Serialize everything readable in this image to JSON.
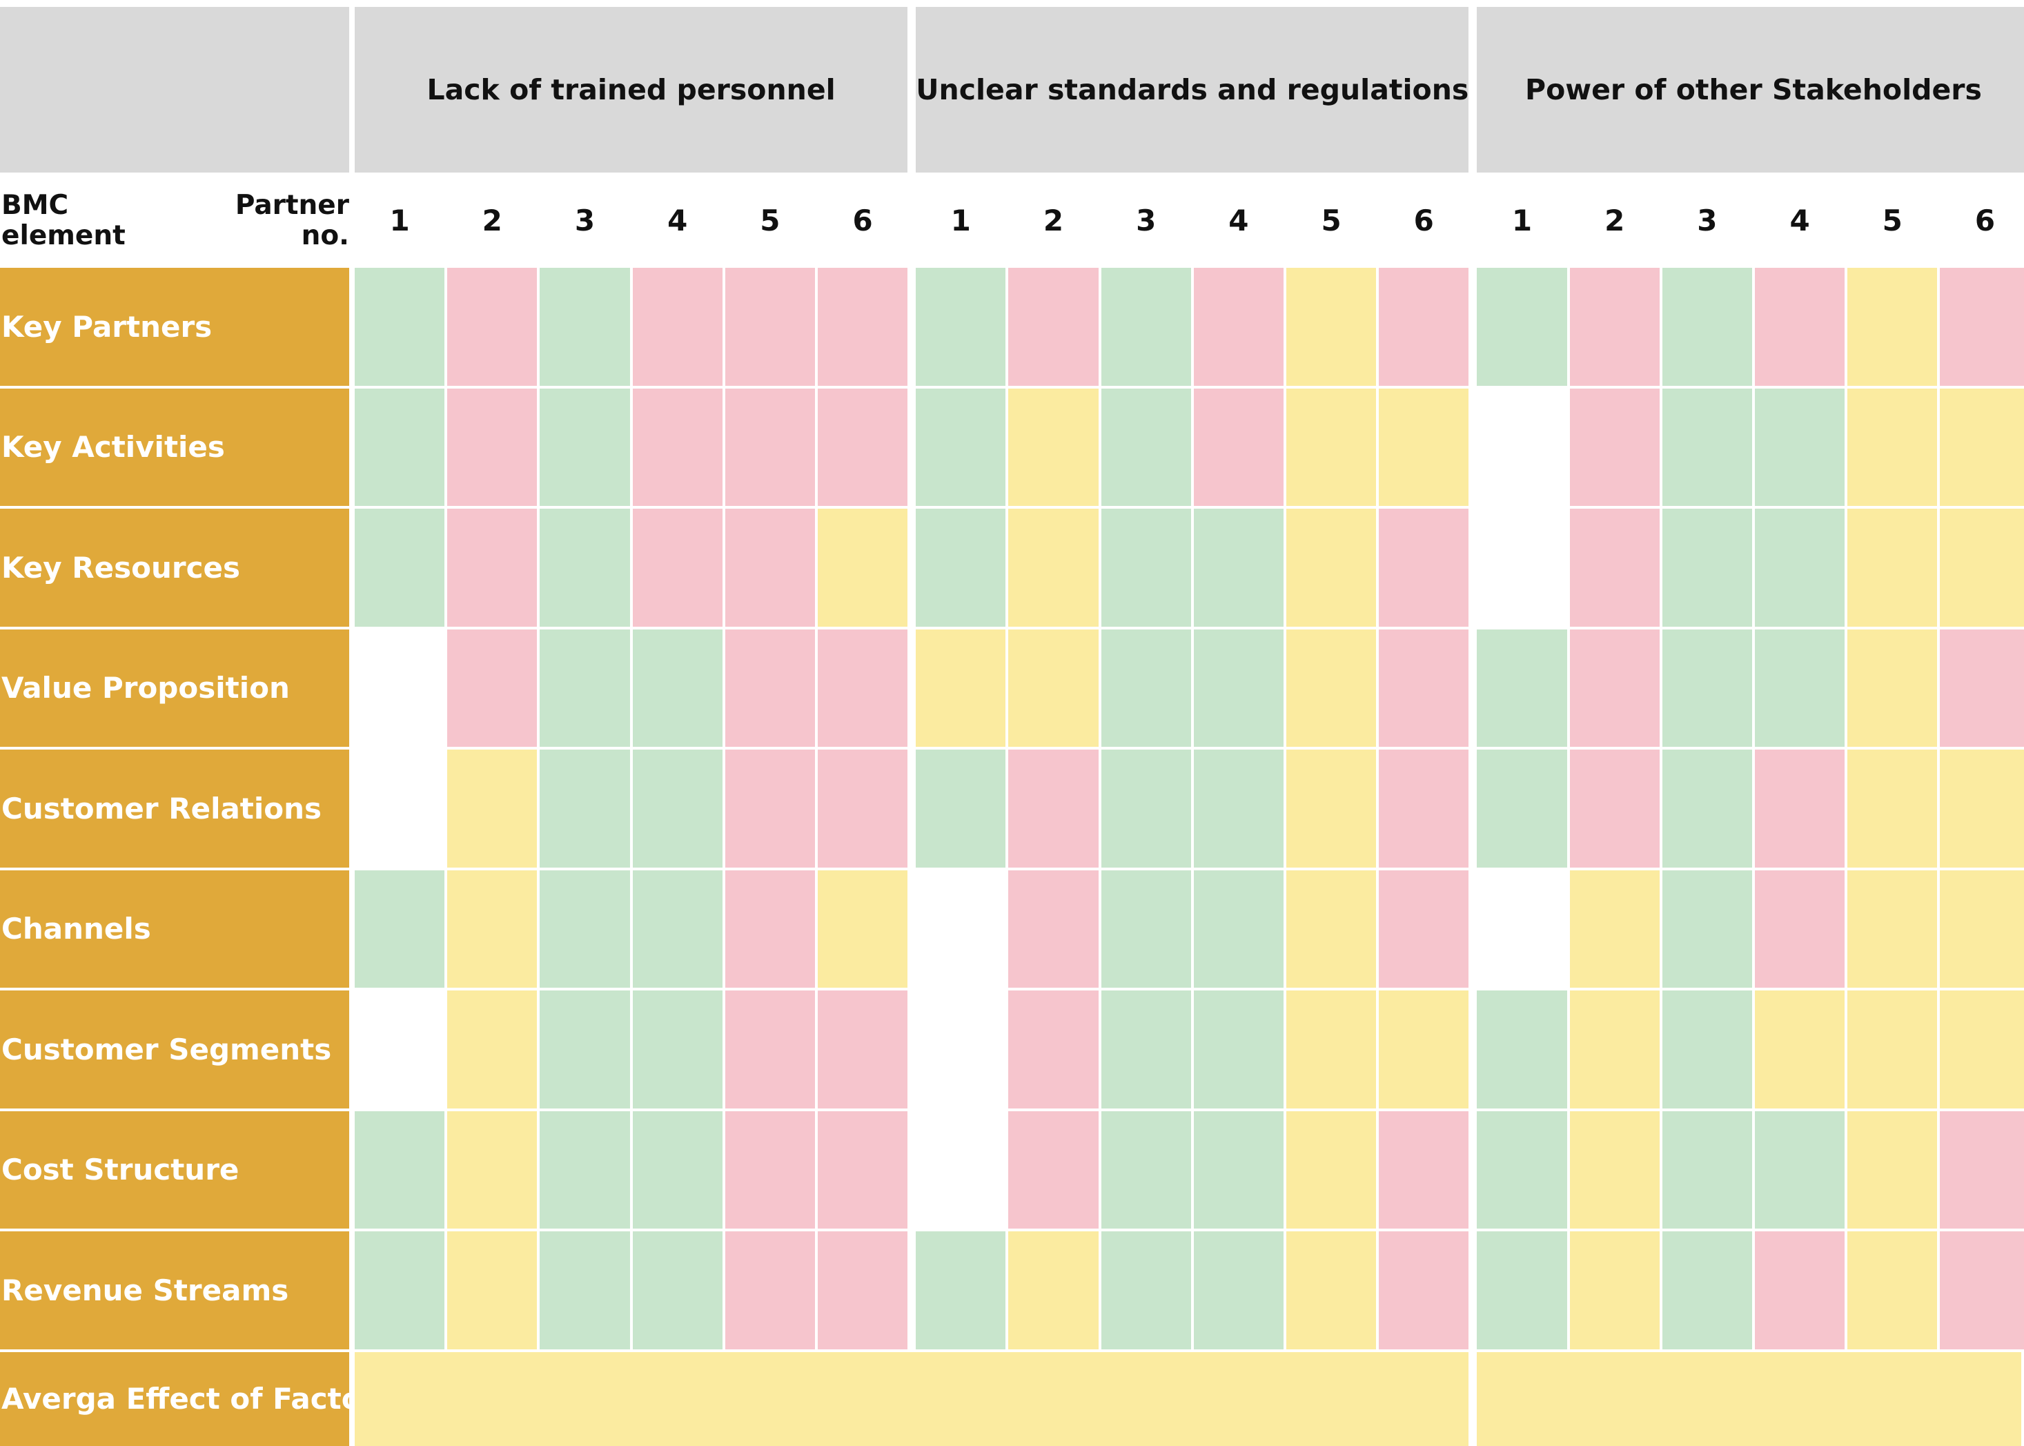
{
  "colors": {
    "green": "#c8e5cc",
    "red": "#f6c5cd",
    "yellow": "#fbeba0",
    "white": "#ffffff",
    "label_bg": "#e0a93a",
    "header_bg": "#d9d9d9"
  },
  "corner": {
    "left_label": "BMC element",
    "right_label": "Partner no."
  },
  "chart_data": {
    "type": "table",
    "factors": [
      "Lack of trained personnel",
      "Unclear standards and regulations",
      "Power of other Stakeholders"
    ],
    "partners": [
      "1",
      "2",
      "3",
      "4",
      "5",
      "6"
    ],
    "rows": [
      {
        "element": "Key Partners",
        "ratings": [
          "green",
          "red",
          "green",
          "red",
          "red",
          "red",
          "green",
          "red",
          "green",
          "red",
          "yellow",
          "red",
          "green",
          "red",
          "green",
          "red",
          "yellow",
          "red"
        ]
      },
      {
        "element": "Key Activities",
        "ratings": [
          "green",
          "red",
          "green",
          "red",
          "red",
          "red",
          "green",
          "yellow",
          "green",
          "red",
          "yellow",
          "yellow",
          "white",
          "red",
          "green",
          "green",
          "yellow",
          "yellow"
        ]
      },
      {
        "element": "Key Resources",
        "ratings": [
          "green",
          "red",
          "green",
          "red",
          "red",
          "yellow",
          "green",
          "yellow",
          "green",
          "green",
          "yellow",
          "red",
          "white",
          "red",
          "green",
          "green",
          "yellow",
          "yellow"
        ]
      },
      {
        "element": "Value Proposition",
        "ratings": [
          "white",
          "red",
          "green",
          "green",
          "red",
          "red",
          "yellow",
          "yellow",
          "green",
          "green",
          "yellow",
          "red",
          "green",
          "red",
          "green",
          "green",
          "yellow",
          "red"
        ]
      },
      {
        "element": "Customer Relations",
        "ratings": [
          "white",
          "yellow",
          "green",
          "green",
          "red",
          "red",
          "green",
          "red",
          "green",
          "green",
          "yellow",
          "red",
          "green",
          "red",
          "green",
          "red",
          "yellow",
          "yellow"
        ]
      },
      {
        "element": "Channels",
        "ratings": [
          "green",
          "yellow",
          "green",
          "green",
          "red",
          "yellow",
          "white",
          "red",
          "green",
          "green",
          "yellow",
          "red",
          "white",
          "yellow",
          "green",
          "red",
          "yellow",
          "yellow"
        ]
      },
      {
        "element": "Customer Segments",
        "ratings": [
          "white",
          "yellow",
          "green",
          "green",
          "red",
          "red",
          "white",
          "red",
          "green",
          "green",
          "yellow",
          "yellow",
          "green",
          "yellow",
          "green",
          "yellow",
          "yellow",
          "yellow"
        ]
      },
      {
        "element": "Cost Structure",
        "ratings": [
          "green",
          "yellow",
          "green",
          "green",
          "red",
          "red",
          "white",
          "red",
          "green",
          "green",
          "yellow",
          "red",
          "green",
          "yellow",
          "green",
          "green",
          "yellow",
          "red"
        ]
      },
      {
        "element": "Revenue Streams",
        "ratings": [
          "green",
          "yellow",
          "green",
          "green",
          "red",
          "red",
          "green",
          "yellow",
          "green",
          "green",
          "yellow",
          "red",
          "green",
          "yellow",
          "green",
          "red",
          "yellow",
          "red"
        ]
      }
    ],
    "average_row": {
      "label": "Averga Effect of Factor",
      "spans": [
        {
          "factors_covered": 2,
          "rating": "yellow"
        },
        {
          "factors_covered": 1,
          "rating": "yellow"
        }
      ]
    }
  }
}
